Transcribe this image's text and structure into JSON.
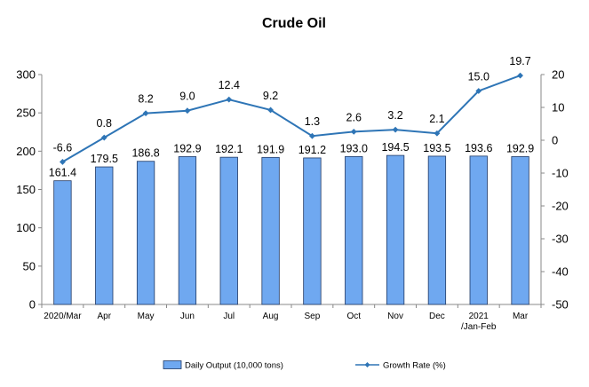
{
  "chart_data": {
    "type": "bar",
    "title": "Crude Oil",
    "categories": [
      "2020/Mar",
      "Apr",
      "May",
      "Jun",
      "Jul",
      "Aug",
      "Sep",
      "Oct",
      "Nov",
      "Dec",
      [
        "2021",
        "/Jan-Feb"
      ],
      "Mar"
    ],
    "series": [
      {
        "name": "Daily Output (10,000 tons)",
        "type": "bar",
        "axis": "left",
        "values": [
          161.4,
          179.5,
          186.8,
          192.9,
          192.1,
          191.9,
          191.2,
          193.0,
          194.5,
          193.5,
          193.6,
          192.9
        ],
        "labels": [
          "161.4",
          "179.5",
          "186.8",
          "192.9",
          "192.1",
          "191.9",
          "191.2",
          "193.0",
          "194.5",
          "193.5",
          "193.6",
          "192.9"
        ],
        "color": "#6fa8f0"
      },
      {
        "name": "Growth Rate (%)",
        "type": "line",
        "axis": "right",
        "values": [
          -6.6,
          0.8,
          8.2,
          9.0,
          12.4,
          9.2,
          1.3,
          2.6,
          3.2,
          2.1,
          15.0,
          19.7
        ],
        "labels": [
          "-6.6",
          "0.8",
          "8.2",
          "9.0",
          "12.4",
          "9.2",
          "1.3",
          "2.6",
          "3.2",
          "2.1",
          "15.0",
          "19.7"
        ],
        "color": "#2e75b6"
      }
    ],
    "y_left": {
      "min": 0,
      "max": 300,
      "step": 50,
      "ticks": [
        "0",
        "50",
        "100",
        "150",
        "200",
        "250",
        "300"
      ]
    },
    "y_right": {
      "min": -50,
      "max": 20,
      "step": 10,
      "ticks": [
        "-50",
        "-40",
        "-30",
        "-20",
        "-10",
        "0",
        "10",
        "20"
      ]
    },
    "grid": false,
    "legend": "bottom"
  }
}
